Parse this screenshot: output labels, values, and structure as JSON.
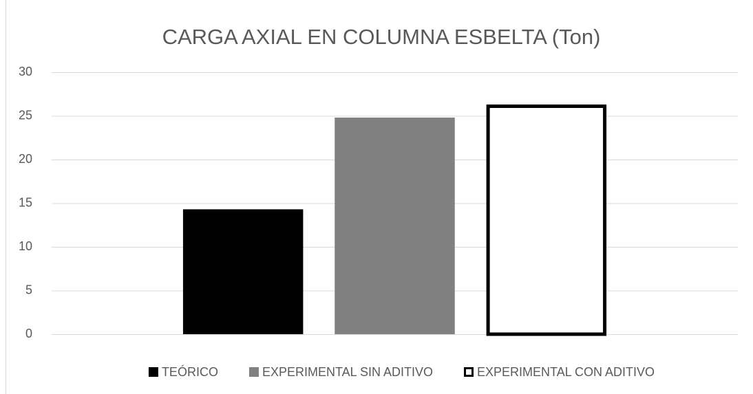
{
  "chart_data": {
    "type": "bar",
    "title": "CARGA AXIAL EN COLUMNA ESBELTA (Ton)",
    "categories": [
      null
    ],
    "series": [
      {
        "name": "TEÓRICO",
        "color": "#000000",
        "values": [
          14.3
        ]
      },
      {
        "name": "EXPERIMENTAL SIN ADITIVO",
        "color": "#808080",
        "values": [
          24.8
        ]
      },
      {
        "name": "EXPERIMENTAL CON ADITIVO",
        "color": "#ffffff",
        "edgecolor": "#000000",
        "values": [
          26.3
        ]
      }
    ],
    "ylim": [
      0,
      30
    ],
    "yticks": [
      0,
      5,
      10,
      15,
      20,
      25,
      30
    ],
    "grid": true,
    "legend": "bottom"
  }
}
